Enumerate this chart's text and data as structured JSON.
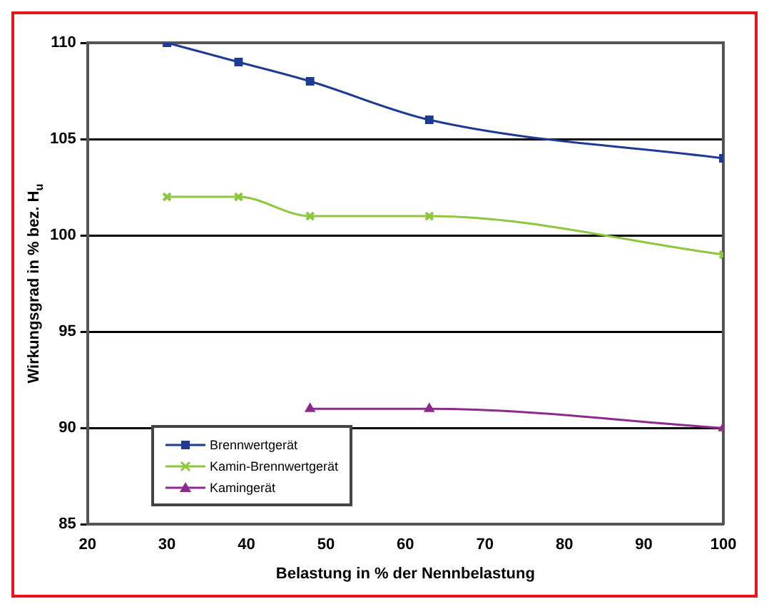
{
  "chart_data": {
    "type": "line",
    "xlabel": "Belastung in % der Nennbelastung",
    "ylabel": "Wirkungsgrad in % bez. H$_{u}$",
    "xlim": [
      20,
      100
    ],
    "xticks": [
      20,
      30,
      40,
      50,
      60,
      70,
      80,
      90,
      100
    ],
    "ylim": [
      85,
      110
    ],
    "yticks": [
      85,
      90,
      95,
      100,
      105,
      110
    ],
    "grid": "y",
    "legend": "bottom left",
    "series": [
      {
        "name": "Brennwertgerät",
        "color": "#1f3a93",
        "marker": "square",
        "x": [
          30,
          39,
          48,
          63,
          100
        ],
        "values": [
          110,
          109,
          108,
          106,
          104
        ]
      },
      {
        "name": "Kamin-Brennwertgerät",
        "color": "#8dc63f",
        "marker": "cross",
        "x": [
          30,
          39,
          48,
          63,
          100
        ],
        "values": [
          102,
          102,
          101,
          101,
          99
        ]
      },
      {
        "name": "Kamingerät",
        "color": "#8e2a8e",
        "marker": "triangle",
        "x": [
          48,
          63,
          100
        ],
        "values": [
          91,
          91,
          90
        ]
      }
    ]
  }
}
